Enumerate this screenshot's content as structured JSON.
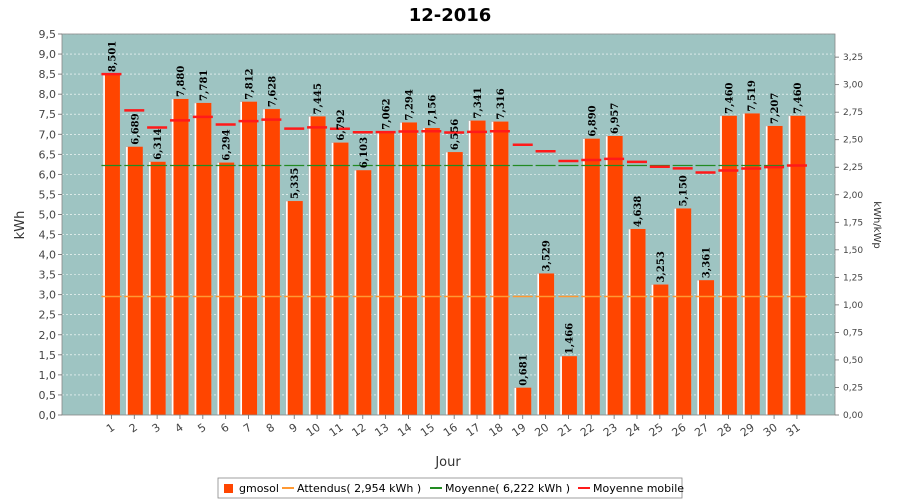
{
  "chart_data": {
    "type": "bar",
    "title": "12-2016",
    "xlabel": "Jour",
    "ylabel": "kWh",
    "y2label": "kWh/kWp",
    "ylim": [
      0,
      9.5
    ],
    "y2lim": [
      0,
      3.46
    ],
    "yticks": [
      "0,0",
      "0,5",
      "1,0",
      "1,5",
      "2,0",
      "2,5",
      "3,0",
      "3,5",
      "4,0",
      "4,5",
      "5,0",
      "5,5",
      "6,0",
      "6,5",
      "7,0",
      "7,5",
      "8,0",
      "8,5",
      "9,0",
      "9,5"
    ],
    "y2ticks": [
      "0,00",
      "0,25",
      "0,50",
      "0,75",
      "1,00",
      "1,25",
      "1,50",
      "1,75",
      "2,00",
      "2,25",
      "2,50",
      "2,75",
      "3,00",
      "3,25"
    ],
    "categories": [
      "1",
      "2",
      "3",
      "4",
      "5",
      "6",
      "7",
      "8",
      "9",
      "10",
      "11",
      "12",
      "13",
      "14",
      "15",
      "16",
      "17",
      "18",
      "19",
      "20",
      "21",
      "22",
      "23",
      "24",
      "25",
      "26",
      "27",
      "28",
      "29",
      "30",
      "31"
    ],
    "series": [
      {
        "name": "gmosol",
        "kind": "bar",
        "color": "#ff4500",
        "values": [
          8.501,
          6.689,
          6.314,
          7.88,
          7.781,
          6.294,
          7.812,
          7.628,
          5.335,
          7.445,
          6.792,
          6.103,
          7.062,
          7.294,
          7.156,
          6.556,
          7.341,
          7.316,
          0.681,
          3.529,
          1.466,
          6.89,
          6.957,
          4.638,
          3.253,
          5.15,
          3.361,
          7.46,
          7.519,
          7.207,
          7.46
        ],
        "labels": [
          "8,501",
          "6,689",
          "6,314",
          "7,880",
          "7,781",
          "6,294",
          "7,812",
          "7,628",
          "5,335",
          "7,445",
          "6,792",
          "6,103",
          "7,062",
          "7,294",
          "7,156",
          "6,556",
          "7,341",
          "7,316",
          "0,681",
          "3,529",
          "1,466",
          "6,890",
          "6,957",
          "4,638",
          "3,253",
          "5,150",
          "3,361",
          "7,460",
          "7,519",
          "7,207",
          "7,460"
        ]
      },
      {
        "name": "Attendus( 2,954 kWh )",
        "kind": "step",
        "color": "#ff9933",
        "value": 2.954
      },
      {
        "name": "Moyenne( 6,222 kWh )",
        "kind": "step",
        "color": "#228b22",
        "value": 6.222
      },
      {
        "name": "Moyenne mobile",
        "kind": "step",
        "color": "#ff1a1a",
        "values": [
          8.501,
          7.595,
          7.168,
          7.346,
          7.433,
          7.243,
          7.327,
          7.365,
          7.14,
          7.171,
          7.137,
          7.051,
          7.052,
          7.069,
          7.075,
          7.043,
          7.06,
          7.074,
          6.738,
          6.577,
          6.333,
          6.359,
          6.385,
          6.312,
          6.19,
          6.15,
          6.047,
          6.097,
          6.146,
          6.181,
          6.222
        ]
      }
    ],
    "legend_position": "bottom",
    "grid": true
  }
}
